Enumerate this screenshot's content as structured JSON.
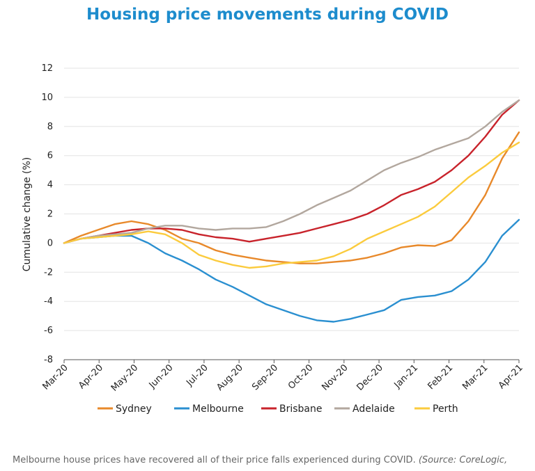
{
  "title": "Housing price movements during COVID",
  "caption": {
    "text": "Melbourne house prices have recovered all of their price falls experienced during COVID.",
    "source": "(Source: CoreLogic,"
  },
  "chart_data": {
    "type": "line",
    "title": "Housing price movements during COVID",
    "ylabel": "Cumulative change (%)",
    "xlabel": "",
    "ylim": [
      -8,
      12
    ],
    "yticks": [
      -8,
      -6,
      -4,
      -2,
      0,
      2,
      4,
      6,
      8,
      10,
      12
    ],
    "x_tick_labels": [
      "Mar-20",
      "Apr-20",
      "May-20",
      "Jun-20",
      "Jul-20",
      "Aug-20",
      "Sep-20",
      "Oct-20",
      "Nov-20",
      "Dec-20",
      "Jan-21",
      "Feb-21",
      "Mar-21",
      "Apr-21"
    ],
    "grid": "horizontal",
    "legend_position": "bottom",
    "x": [
      "Mar-20",
      "mid-Mar-20",
      "Apr-20",
      "mid-Apr-20",
      "May-20",
      "mid-May-20",
      "Jun-20",
      "mid-Jun-20",
      "Jul-20",
      "mid-Jul-20",
      "Aug-20",
      "mid-Aug-20",
      "Sep-20",
      "mid-Sep-20",
      "Oct-20",
      "mid-Oct-20",
      "Nov-20",
      "mid-Nov-20",
      "Dec-20",
      "mid-Dec-20",
      "Jan-21",
      "mid-Jan-21",
      "Feb-21",
      "mid-Feb-21",
      "Mar-21",
      "mid-Mar-21",
      "Apr-21",
      "mid-Apr-21"
    ],
    "series": [
      {
        "name": "Sydney",
        "color": "#e8892a",
        "values": [
          0,
          0.5,
          0.9,
          1.3,
          1.5,
          1.3,
          0.9,
          0.3,
          0,
          -0.5,
          -0.8,
          -1.0,
          -1.2,
          -1.3,
          -1.4,
          -1.4,
          -1.3,
          -1.2,
          -1.0,
          -0.7,
          -0.3,
          -0.15,
          -0.2,
          0.2,
          1.5,
          3.3,
          5.8,
          7.6
        ]
      },
      {
        "name": "Melbourne",
        "color": "#2a8fd0",
        "values": [
          0,
          0.3,
          0.4,
          0.5,
          0.5,
          0,
          -0.7,
          -1.2,
          -1.8,
          -2.5,
          -3.0,
          -3.6,
          -4.2,
          -4.6,
          -5.0,
          -5.3,
          -5.4,
          -5.2,
          -4.9,
          -4.6,
          -3.9,
          -3.7,
          -3.6,
          -3.3,
          -2.5,
          -1.3,
          0.5,
          1.6
        ]
      },
      {
        "name": "Brisbane",
        "color": "#c8232b",
        "values": [
          0,
          0.3,
          0.5,
          0.7,
          0.9,
          1.0,
          1.0,
          0.9,
          0.6,
          0.4,
          0.3,
          0.1,
          0.3,
          0.5,
          0.7,
          1.0,
          1.3,
          1.6,
          2.0,
          2.6,
          3.3,
          3.7,
          4.2,
          5.0,
          6.0,
          7.3,
          8.8,
          9.8
        ]
      },
      {
        "name": "Adelaide",
        "color": "#b2a79e",
        "values": [
          0,
          0.3,
          0.5,
          0.6,
          0.7,
          1.0,
          1.2,
          1.2,
          1.0,
          0.9,
          1.0,
          1.0,
          1.1,
          1.5,
          2.0,
          2.6,
          3.1,
          3.6,
          4.3,
          5.0,
          5.5,
          5.9,
          6.4,
          6.8,
          7.2,
          8.0,
          9.0,
          9.8
        ]
      },
      {
        "name": "Perth",
        "color": "#fbcb3d",
        "values": [
          0,
          0.3,
          0.4,
          0.5,
          0.6,
          0.8,
          0.6,
          0,
          -0.8,
          -1.2,
          -1.5,
          -1.7,
          -1.6,
          -1.4,
          -1.3,
          -1.2,
          -0.9,
          -0.4,
          0.3,
          0.8,
          1.3,
          1.8,
          2.5,
          3.5,
          4.5,
          5.3,
          6.2,
          6.9
        ]
      }
    ]
  }
}
